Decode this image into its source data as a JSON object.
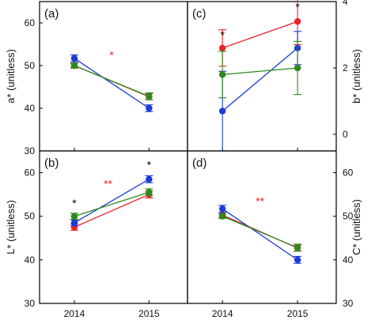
{
  "colors": {
    "axis": "#000000",
    "sig": "#e8232a"
  },
  "shared": {
    "x_categories": [
      "2014",
      "2015"
    ]
  },
  "chart_data": [
    {
      "panel": "(a)",
      "type": "line",
      "ylabel": "a* (unitless)",
      "ylim": [
        30,
        65
      ],
      "yticks": [
        "30",
        "40",
        "50",
        "60"
      ],
      "yaxis_side": "left",
      "show_x_ticklabels": false,
      "annotations": [
        {
          "text": "*",
          "x": 0.5,
          "y": 52.5,
          "color": "#e8232a"
        }
      ],
      "series": [
        {
          "color": "#e8232a",
          "values": [
            50.0,
            42.7
          ],
          "errors": [
            0.6,
            0.7
          ]
        },
        {
          "color": "#1a3cd6",
          "values": [
            51.7,
            40.0
          ],
          "errors": [
            0.8,
            0.8
          ]
        },
        {
          "color": "#2d8a1e",
          "values": [
            50.0,
            42.8
          ],
          "errors": [
            0.5,
            0.8
          ]
        }
      ]
    },
    {
      "panel": "(c)",
      "type": "line",
      "ylabel": "b* (unitless)",
      "ylim": [
        -0.5,
        4
      ],
      "yticks": [
        "0",
        "2",
        "4"
      ],
      "yaxis_side": "right",
      "show_x_ticklabels": false,
      "annotations": [
        {
          "text": "*",
          "x": 0,
          "y": 3.0,
          "color": "#000000"
        },
        {
          "text": "*",
          "x": 1,
          "y": 3.85,
          "color": "#000000"
        }
      ],
      "series": [
        {
          "color": "#e8232a",
          "values": [
            2.6,
            3.4
          ],
          "errors": [
            0.55,
            0.7
          ]
        },
        {
          "color": "#1a3cd6",
          "values": [
            0.7,
            2.6
          ],
          "errors": [
            1.2,
            0.5
          ]
        },
        {
          "color": "#2d8a1e",
          "values": [
            1.8,
            2.0
          ],
          "errors": [
            0.7,
            0.8
          ]
        }
      ]
    },
    {
      "panel": "(b)",
      "type": "line",
      "ylabel": "L* (unitless)",
      "ylim": [
        30,
        65
      ],
      "yticks": [
        "30",
        "40",
        "50",
        "60"
      ],
      "yaxis_side": "left",
      "show_x_ticklabels": true,
      "annotations": [
        {
          "text": "*",
          "x": 0,
          "y": 53,
          "color": "#000000"
        },
        {
          "text": "*",
          "x": 1,
          "y": 61.8,
          "color": "#000000"
        },
        {
          "text": "**",
          "x": 0.45,
          "y": 57.5,
          "color": "#e8232a"
        }
      ],
      "series": [
        {
          "color": "#e8232a",
          "values": [
            47.5,
            55.0
          ],
          "errors": [
            0.7,
            0.8
          ]
        },
        {
          "color": "#1a3cd6",
          "values": [
            48.5,
            58.5
          ],
          "errors": [
            0.7,
            0.8
          ]
        },
        {
          "color": "#2d8a1e",
          "values": [
            50.0,
            55.5
          ],
          "errors": [
            0.7,
            0.8
          ]
        }
      ]
    },
    {
      "panel": "(d)",
      "type": "line",
      "ylabel": "C* (unitless)",
      "ylim": [
        30,
        65
      ],
      "yticks": [
        "30",
        "40",
        "50",
        "60"
      ],
      "yaxis_side": "right",
      "show_x_ticklabels": true,
      "annotations": [
        {
          "text": "**",
          "x": 0.5,
          "y": 53.5,
          "color": "#e8232a"
        }
      ],
      "series": [
        {
          "color": "#e8232a",
          "values": [
            50.3,
            42.7
          ],
          "errors": [
            0.6,
            0.7
          ]
        },
        {
          "color": "#1a3cd6",
          "values": [
            51.7,
            40.0
          ],
          "errors": [
            0.8,
            0.8
          ]
        },
        {
          "color": "#2d8a1e",
          "values": [
            50.0,
            42.8
          ],
          "errors": [
            0.5,
            0.8
          ]
        }
      ]
    }
  ]
}
